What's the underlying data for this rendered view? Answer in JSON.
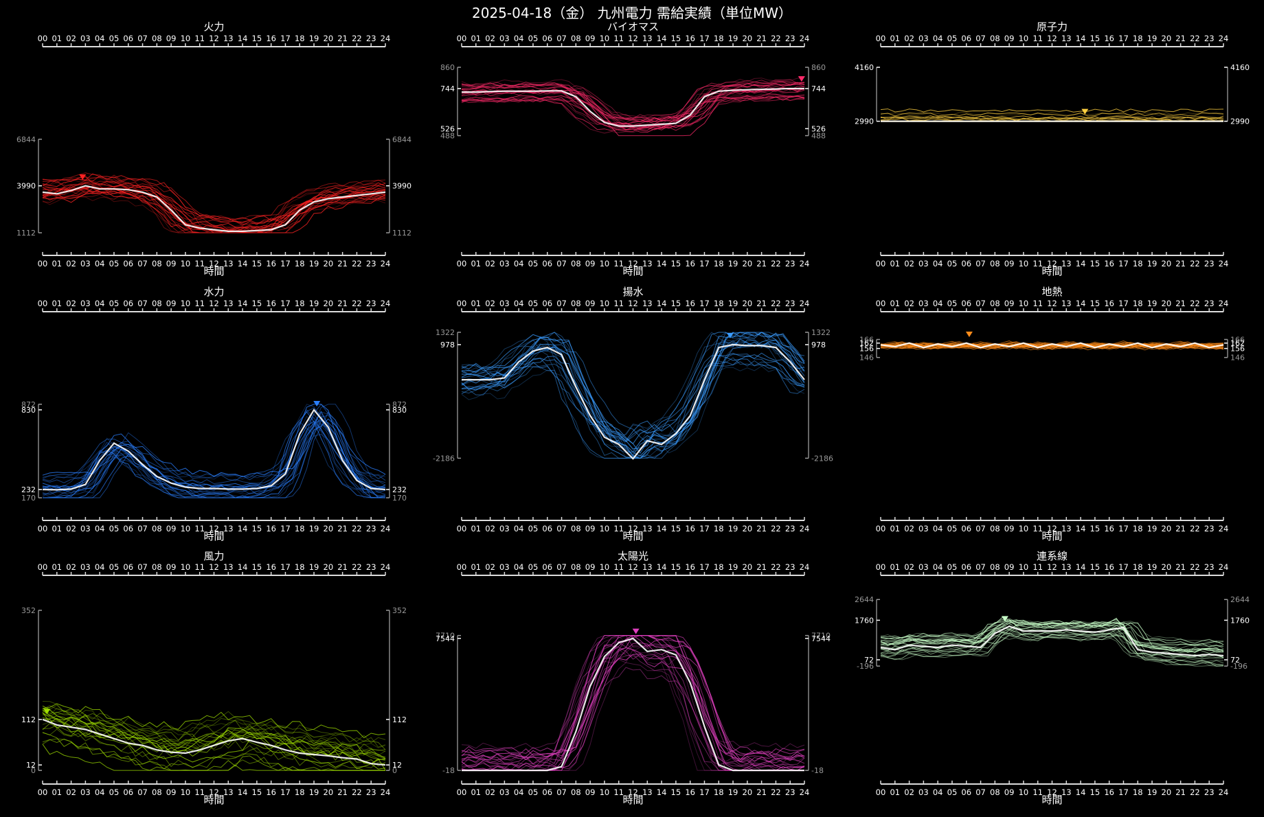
{
  "page": {
    "title": "2025-04-18（金） 九州電力 需給実績（単位MW）"
  },
  "time_axis_label": "時間",
  "hour_ticks": [
    "00",
    "01",
    "02",
    "03",
    "04",
    "05",
    "06",
    "07",
    "08",
    "09",
    "10",
    "11",
    "12",
    "13",
    "14",
    "15",
    "16",
    "17",
    "18",
    "19",
    "20",
    "21",
    "22",
    "23",
    "24"
  ],
  "chart_data": [
    {
      "type": "line",
      "title": "火力",
      "color": "#ff2222",
      "x": "hours 0-24",
      "ylim": [
        1112,
        6844
      ],
      "axis_ticks": [
        "6844",
        "3990",
        "1112"
      ],
      "marker_hour": 2.8,
      "series": [
        {
          "values": [
            3600,
            3500,
            3700,
            3990,
            3800,
            3800,
            3750,
            3600,
            3300,
            2500,
            1600,
            1400,
            1300,
            1200,
            1200,
            1250,
            1300,
            1600,
            2500,
            3000,
            3200,
            3300,
            3400,
            3500,
            3600
          ]
        }
      ]
    },
    {
      "type": "line",
      "title": "バイオマス",
      "color": "#ff2a6a",
      "x": "hours 0-24",
      "ylim": [
        488,
        860
      ],
      "axis_ticks": [
        "860",
        "744",
        "526",
        "488"
      ],
      "marker_hour": 23.8,
      "series": [
        {
          "values": [
            725,
            725,
            728,
            730,
            730,
            730,
            732,
            732,
            700,
            620,
            560,
            540,
            540,
            545,
            550,
            555,
            600,
            700,
            730,
            735,
            738,
            740,
            742,
            744,
            744
          ]
        }
      ]
    },
    {
      "type": "line",
      "title": "原子力",
      "color": "#ffd040",
      "x": "hours 0-24",
      "ylim": [
        2990,
        4160
      ],
      "axis_ticks": [
        "4160",
        "2990"
      ],
      "marker_hour": 14.3,
      "series": [
        {
          "values": [
            2990,
            2990,
            2990,
            2990,
            2990,
            2990,
            2990,
            2990,
            2990,
            2990,
            2990,
            2990,
            2990,
            2990,
            2990,
            2990,
            2990,
            2990,
            2990,
            2990,
            2990,
            2990,
            2990,
            2990,
            2990
          ]
        }
      ]
    },
    {
      "type": "line",
      "title": "水力",
      "color": "#2a7fff",
      "x": "hours 0-24",
      "ylim": [
        170,
        872
      ],
      "axis_ticks": [
        "872",
        "830",
        "232",
        "170"
      ],
      "marker_hour": 19.2,
      "series": [
        {
          "values": [
            232,
            230,
            235,
            270,
            450,
            580,
            520,
            420,
            330,
            280,
            250,
            240,
            240,
            235,
            235,
            240,
            260,
            350,
            650,
            830,
            700,
            450,
            300,
            240,
            232
          ]
        }
      ]
    },
    {
      "type": "line",
      "title": "揚水",
      "color": "#3a9cff",
      "x": "hours 0-24",
      "ylim": [
        -2186,
        1322
      ],
      "axis_ticks": [
        "1322",
        "978",
        "-2186"
      ],
      "marker_hour": 18.8,
      "series": [
        {
          "values": [
            0,
            0,
            0,
            50,
            500,
            800,
            900,
            700,
            -200,
            -1000,
            -1600,
            -1800,
            -2200,
            -1700,
            -1800,
            -1500,
            -1000,
            0,
            900,
            978,
            950,
            950,
            900,
            500,
            0
          ]
        }
      ]
    },
    {
      "type": "line",
      "title": "地熱",
      "color": "#ff8c1a",
      "x": "hours 0-24",
      "ylim": [
        146,
        166
      ],
      "axis_ticks": [
        "166",
        "162",
        "156",
        "146"
      ],
      "marker_hour": 6.2,
      "series": [
        {
          "values": [
            160,
            158,
            162,
            157,
            161,
            158,
            162,
            157,
            161,
            158,
            162,
            157,
            161,
            158,
            162,
            157,
            161,
            158,
            162,
            157,
            161,
            158,
            162,
            157,
            160
          ]
        }
      ]
    },
    {
      "type": "line",
      "title": "風力",
      "color": "#a0e000",
      "x": "hours 0-24",
      "ylim": [
        0,
        352
      ],
      "axis_ticks": [
        "352",
        "112",
        "12",
        "0"
      ],
      "marker_hour": 0.3,
      "series": [
        {
          "values": [
            112,
            100,
            95,
            90,
            80,
            70,
            60,
            55,
            45,
            40,
            38,
            45,
            55,
            65,
            70,
            62,
            55,
            45,
            38,
            35,
            32,
            28,
            25,
            15,
            12
          ]
        }
      ]
    },
    {
      "type": "line",
      "title": "太陽光",
      "color": "#e040c0",
      "x": "hours 0-24",
      "ylim": [
        -18,
        7710
      ],
      "axis_ticks": [
        "7710",
        "7544",
        "-18"
      ],
      "marker_hour": 12.2,
      "series": [
        {
          "values": [
            -18,
            -18,
            -18,
            -18,
            -18,
            -18,
            -18,
            200,
            2200,
            4800,
            6500,
            7300,
            7544,
            6800,
            6900,
            6600,
            5000,
            2500,
            300,
            -18,
            -18,
            -18,
            -18,
            -18,
            -18
          ]
        }
      ]
    },
    {
      "type": "line",
      "title": "連系線",
      "color": "#c8ffc8",
      "x": "hours 0-24",
      "ylim": [
        -196,
        2644
      ],
      "axis_ticks": [
        "2644",
        "1760",
        "72",
        "-196"
      ],
      "marker_hour": 8.7,
      "series": [
        {
          "values": [
            600,
            500,
            700,
            650,
            600,
            700,
            650,
            600,
            1200,
            1500,
            1300,
            1300,
            1300,
            1350,
            1300,
            1250,
            1350,
            1450,
            500,
            400,
            350,
            300,
            250,
            300,
            250
          ]
        }
      ]
    }
  ]
}
